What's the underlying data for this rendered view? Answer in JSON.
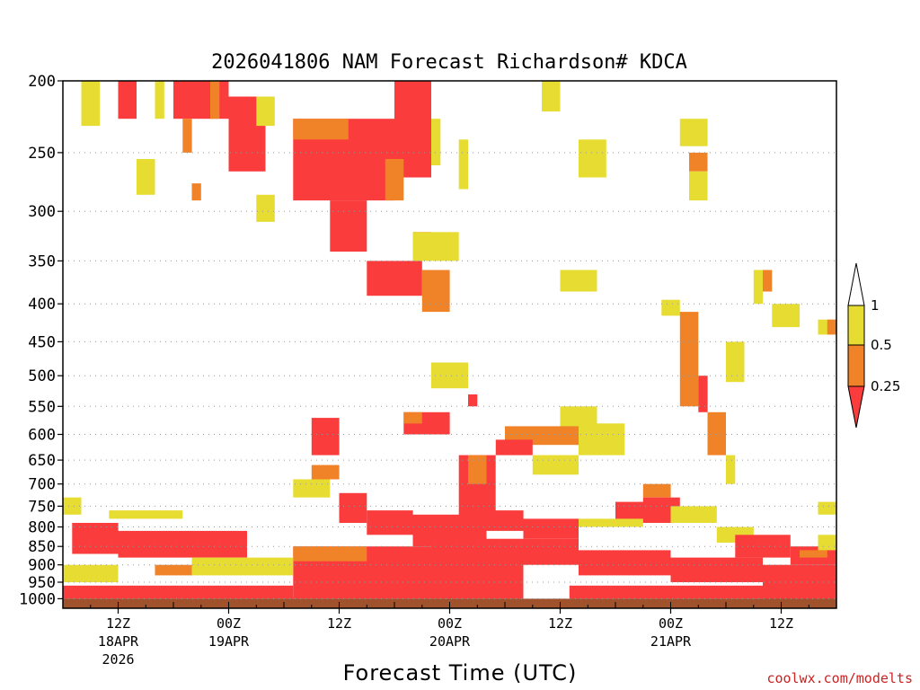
{
  "chart_data": {
    "type": "heatmap",
    "title": "2026041806 NAM Forecast Richardson# KDCA",
    "xlabel": "Forecast Time (UTC)",
    "ylabel": "",
    "credit": "coolwx.com/modelts",
    "yscale": "log-pressure",
    "ylim": [
      1030,
      200
    ],
    "xlim_hours": [
      0,
      84
    ],
    "grid": "horizontal dotted",
    "y_ticks": [
      "200",
      "250",
      "300",
      "350",
      "400",
      "450",
      "500",
      "550",
      "600",
      "650",
      "700",
      "750",
      "800",
      "850",
      "900",
      "950",
      "1000"
    ],
    "y_tick_values": [
      200,
      250,
      300,
      350,
      400,
      450,
      500,
      550,
      600,
      650,
      700,
      750,
      800,
      850,
      900,
      950,
      1000
    ],
    "x_ticks": [
      {
        "hour": 6,
        "label": "12Z",
        "date": "18APR",
        "year": "2026"
      },
      {
        "hour": 18,
        "label": "00Z",
        "date": "19APR",
        "year": ""
      },
      {
        "hour": 30,
        "label": "12Z",
        "date": "",
        "year": ""
      },
      {
        "hour": 42,
        "label": "00Z",
        "date": "20APR",
        "year": ""
      },
      {
        "hour": 54,
        "label": "12Z",
        "date": "",
        "year": ""
      },
      {
        "hour": 66,
        "label": "00Z",
        "date": "21APR",
        "year": ""
      },
      {
        "hour": 78,
        "label": "12Z",
        "date": "",
        "year": ""
      }
    ],
    "legend": {
      "placement": "right",
      "labels": [
        "1",
        "0.5",
        "0.25"
      ],
      "colors": {
        "white": "#ffffff",
        "yellow": "#e6dc32",
        "orange": "#f08228",
        "red": "#fa3c3c"
      }
    },
    "categories_note": "Richardson number classes: >1 white, 0.5-1 yellow, 0.25-0.5 orange, <0.25 red",
    "ground_color": "#a0522d",
    "regions": [
      {
        "cls": "red",
        "h": [
          1,
          6
        ],
        "p": [
          790,
          870
        ]
      },
      {
        "cls": "yellow",
        "h": [
          0,
          2
        ],
        "p": [
          730,
          770
        ]
      },
      {
        "cls": "yellow",
        "h": [
          5,
          13
        ],
        "p": [
          760,
          780
        ]
      },
      {
        "cls": "red",
        "h": [
          6,
          20
        ],
        "p": [
          810,
          880
        ]
      },
      {
        "cls": "yellow",
        "h": [
          2,
          4
        ],
        "p": [
          200,
          230
        ]
      },
      {
        "cls": "red",
        "h": [
          6,
          8
        ],
        "p": [
          200,
          225
        ]
      },
      {
        "cls": "yellow",
        "h": [
          10,
          11
        ],
        "p": [
          200,
          225
        ]
      },
      {
        "cls": "red",
        "h": [
          12,
          18
        ],
        "p": [
          200,
          225
        ]
      },
      {
        "cls": "orange",
        "h": [
          13,
          14
        ],
        "p": [
          225,
          250
        ]
      },
      {
        "cls": "yellow",
        "h": [
          8,
          10
        ],
        "p": [
          255,
          285
        ]
      },
      {
        "cls": "orange",
        "h": [
          14,
          15
        ],
        "p": [
          275,
          290
        ]
      },
      {
        "cls": "red",
        "h": [
          18,
          22
        ],
        "p": [
          210,
          265
        ]
      },
      {
        "cls": "orange",
        "h": [
          16,
          17
        ],
        "p": [
          200,
          225
        ]
      },
      {
        "cls": "yellow",
        "h": [
          21,
          23
        ],
        "p": [
          210,
          230
        ]
      },
      {
        "cls": "yellow",
        "h": [
          21,
          23
        ],
        "p": [
          285,
          310
        ]
      },
      {
        "cls": "red",
        "h": [
          25,
          36
        ],
        "p": [
          225,
          290
        ]
      },
      {
        "cls": "orange",
        "h": [
          25,
          31
        ],
        "p": [
          225,
          240
        ]
      },
      {
        "cls": "red",
        "h": [
          29,
          33
        ],
        "p": [
          290,
          340
        ]
      },
      {
        "cls": "red",
        "h": [
          36,
          40
        ],
        "p": [
          200,
          270
        ]
      },
      {
        "cls": "red",
        "h": [
          33,
          39
        ],
        "p": [
          350,
          390
        ]
      },
      {
        "cls": "red",
        "h": [
          38,
          40
        ],
        "p": [
          320,
          345
        ]
      },
      {
        "cls": "orange",
        "h": [
          39,
          42
        ],
        "p": [
          360,
          410
        ]
      },
      {
        "cls": "yellow",
        "h": [
          38,
          43
        ],
        "p": [
          320,
          350
        ]
      },
      {
        "cls": "yellow",
        "h": [
          43,
          44
        ],
        "p": [
          240,
          280
        ]
      },
      {
        "cls": "yellow",
        "h": [
          40,
          41
        ],
        "p": [
          225,
          260
        ]
      },
      {
        "cls": "orange",
        "h": [
          35,
          37
        ],
        "p": [
          255,
          290
        ]
      },
      {
        "cls": "yellow",
        "h": [
          54,
          58
        ],
        "p": [
          360,
          385
        ]
      },
      {
        "cls": "yellow",
        "h": [
          56,
          59
        ],
        "p": [
          240,
          270
        ]
      },
      {
        "cls": "yellow",
        "h": [
          52,
          54
        ],
        "p": [
          200,
          220
        ]
      },
      {
        "cls": "yellow",
        "h": [
          67,
          70
        ],
        "p": [
          225,
          245
        ]
      },
      {
        "cls": "orange",
        "h": [
          68,
          70
        ],
        "p": [
          250,
          265
        ]
      },
      {
        "cls": "yellow",
        "h": [
          68,
          70
        ],
        "p": [
          265,
          290
        ]
      },
      {
        "cls": "yellow",
        "h": [
          75,
          76
        ],
        "p": [
          360,
          400
        ]
      },
      {
        "cls": "orange",
        "h": [
          76,
          77
        ],
        "p": [
          360,
          385
        ]
      },
      {
        "cls": "yellow",
        "h": [
          77,
          80
        ],
        "p": [
          400,
          430
        ]
      },
      {
        "cls": "yellow",
        "h": [
          82,
          84
        ],
        "p": [
          420,
          440
        ]
      },
      {
        "cls": "orange",
        "h": [
          83,
          84
        ],
        "p": [
          420,
          440
        ]
      },
      {
        "cls": "yellow",
        "h": [
          65,
          67
        ],
        "p": [
          395,
          415
        ]
      },
      {
        "cls": "orange",
        "h": [
          67,
          69
        ],
        "p": [
          410,
          550
        ]
      },
      {
        "cls": "red",
        "h": [
          69,
          70
        ],
        "p": [
          500,
          560
        ]
      },
      {
        "cls": "orange",
        "h": [
          70,
          72
        ],
        "p": [
          560,
          640
        ]
      },
      {
        "cls": "yellow",
        "h": [
          72,
          73
        ],
        "p": [
          640,
          700
        ]
      },
      {
        "cls": "yellow",
        "h": [
          72,
          74
        ],
        "p": [
          450,
          510
        ]
      },
      {
        "cls": "red",
        "h": [
          37,
          42
        ],
        "p": [
          560,
          600
        ]
      },
      {
        "cls": "orange",
        "h": [
          37,
          39
        ],
        "p": [
          560,
          580
        ]
      },
      {
        "cls": "yellow",
        "h": [
          40,
          44
        ],
        "p": [
          480,
          520
        ]
      },
      {
        "cls": "red",
        "h": [
          44,
          45
        ],
        "p": [
          530,
          550
        ]
      },
      {
        "cls": "yellow",
        "h": [
          54,
          58
        ],
        "p": [
          550,
          600
        ]
      },
      {
        "cls": "orange",
        "h": [
          48,
          56
        ],
        "p": [
          585,
          620
        ]
      },
      {
        "cls": "red",
        "h": [
          47,
          51
        ],
        "p": [
          610,
          640
        ]
      },
      {
        "cls": "yellow",
        "h": [
          56,
          61
        ],
        "p": [
          580,
          640
        ]
      },
      {
        "cls": "yellow",
        "h": [
          51,
          56
        ],
        "p": [
          640,
          680
        ]
      },
      {
        "cls": "red",
        "h": [
          27,
          30
        ],
        "p": [
          570,
          640
        ]
      },
      {
        "cls": "orange",
        "h": [
          27,
          30
        ],
        "p": [
          660,
          690
        ]
      },
      {
        "cls": "yellow",
        "h": [
          25,
          29
        ],
        "p": [
          690,
          730
        ]
      },
      {
        "cls": "red",
        "h": [
          30,
          33
        ],
        "p": [
          720,
          790
        ]
      },
      {
        "cls": "red",
        "h": [
          33,
          38
        ],
        "p": [
          760,
          820
        ]
      },
      {
        "cls": "red",
        "h": [
          43,
          47
        ],
        "p": [
          640,
          780
        ]
      },
      {
        "cls": "orange",
        "h": [
          44,
          46
        ],
        "p": [
          640,
          700
        ]
      },
      {
        "cls": "red",
        "h": [
          38,
          46
        ],
        "p": [
          770,
          850
        ]
      },
      {
        "cls": "red",
        "h": [
          45,
          50
        ],
        "p": [
          760,
          810
        ]
      },
      {
        "cls": "red",
        "h": [
          50,
          56
        ],
        "p": [
          780,
          830
        ]
      },
      {
        "cls": "yellow",
        "h": [
          56,
          60
        ],
        "p": [
          780,
          800
        ]
      },
      {
        "cls": "red",
        "h": [
          60,
          66
        ],
        "p": [
          740,
          790
        ]
      },
      {
        "cls": "orange",
        "h": [
          63,
          66
        ],
        "p": [
          700,
          730
        ]
      },
      {
        "cls": "red",
        "h": [
          63,
          67
        ],
        "p": [
          730,
          760
        ]
      },
      {
        "cls": "yellow",
        "h": [
          60,
          63
        ],
        "p": [
          780,
          800
        ]
      },
      {
        "cls": "yellow",
        "h": [
          66,
          71
        ],
        "p": [
          750,
          790
        ]
      },
      {
        "cls": "yellow",
        "h": [
          71,
          75
        ],
        "p": [
          800,
          840
        ]
      },
      {
        "cls": "red",
        "h": [
          73,
          79
        ],
        "p": [
          820,
          880
        ]
      },
      {
        "cls": "red",
        "h": [
          79,
          84
        ],
        "p": [
          850,
          900
        ]
      },
      {
        "cls": "orange",
        "h": [
          80,
          83
        ],
        "p": [
          860,
          880
        ]
      },
      {
        "cls": "yellow",
        "h": [
          82,
          84
        ],
        "p": [
          740,
          770
        ]
      },
      {
        "cls": "yellow",
        "h": [
          82,
          84
        ],
        "p": [
          820,
          860
        ]
      },
      {
        "cls": "red",
        "h": [
          25,
          40
        ],
        "p": [
          850,
          1000
        ]
      },
      {
        "cls": "orange",
        "h": [
          25,
          33
        ],
        "p": [
          850,
          890
        ]
      },
      {
        "cls": "red",
        "h": [
          40,
          50
        ],
        "p": [
          830,
          1000
        ]
      },
      {
        "cls": "red",
        "h": [
          50,
          56
        ],
        "p": [
          830,
          900
        ]
      },
      {
        "cls": "red",
        "h": [
          56,
          66
        ],
        "p": [
          860,
          930
        ]
      },
      {
        "cls": "red",
        "h": [
          66,
          76
        ],
        "p": [
          880,
          950
        ]
      },
      {
        "cls": "red",
        "h": [
          76,
          84
        ],
        "p": [
          900,
          1000
        ]
      },
      {
        "cls": "red",
        "h": [
          55,
          84
        ],
        "p": [
          960,
          1000
        ]
      },
      {
        "cls": "red",
        "h": [
          0,
          25
        ],
        "p": [
          960,
          1000
        ]
      },
      {
        "cls": "yellow",
        "h": [
          14,
          25
        ],
        "p": [
          880,
          930
        ]
      },
      {
        "cls": "orange",
        "h": [
          10,
          14
        ],
        "p": [
          900,
          930
        ]
      },
      {
        "cls": "yellow",
        "h": [
          0,
          6
        ],
        "p": [
          900,
          950
        ]
      }
    ]
  }
}
